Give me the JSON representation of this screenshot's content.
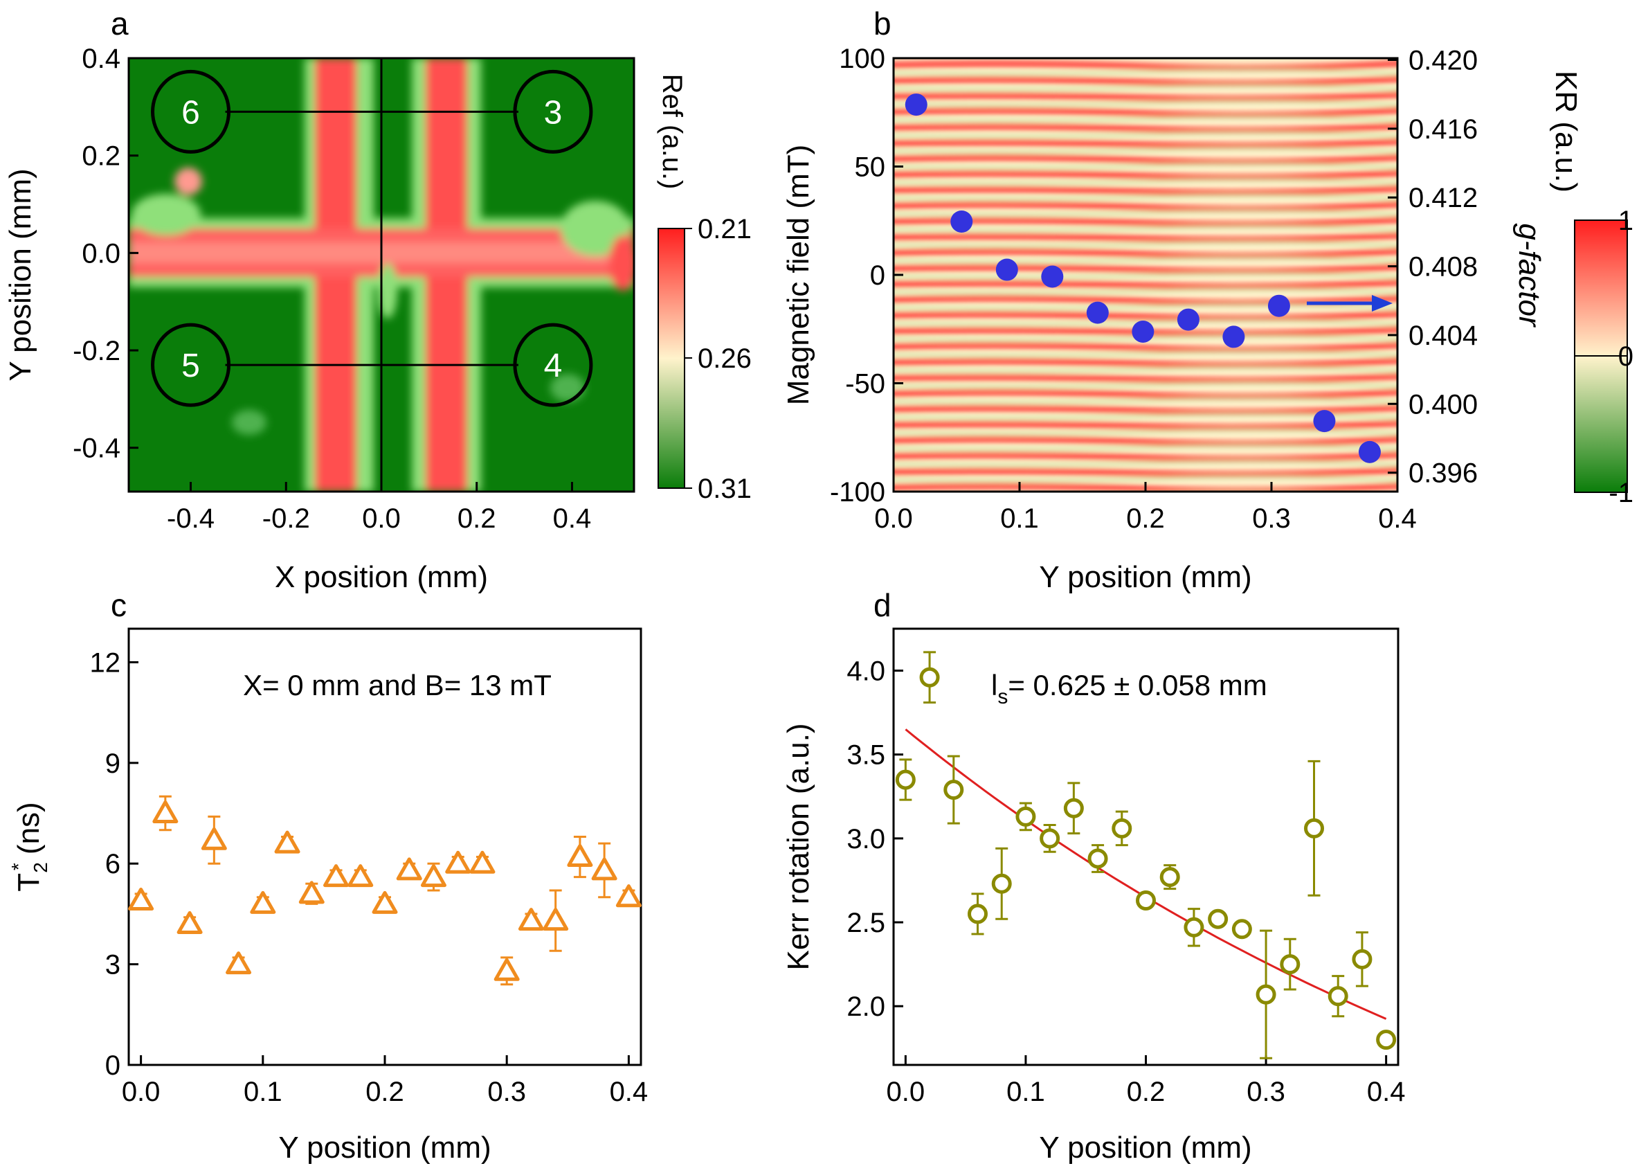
{
  "chart_data": [
    {
      "panel": "a",
      "type": "heatmap",
      "xlabel": "X position (mm)",
      "ylabel": "Y position (mm)",
      "xlim": [
        -0.53,
        0.53
      ],
      "ylim": [
        -0.49,
        0.4
      ],
      "xticks": [
        "-0.4",
        "-0.2",
        "0.0",
        "0.2",
        "0.4"
      ],
      "yticks": [
        "0.4",
        "0.2",
        "0.0",
        "-0.2",
        "-0.4"
      ],
      "colorbar": {
        "label": "Ref (a.u.)",
        "ticks": [
          "0.21",
          "0.26",
          "0.31"
        ],
        "colors": [
          "#ff1e1e",
          "#fff3cc",
          "#0a7d0a"
        ]
      },
      "contacts": [
        {
          "label": "6",
          "x": -0.4,
          "y": 0.29
        },
        {
          "label": "3",
          "x": 0.36,
          "y": 0.29
        },
        {
          "label": "5",
          "x": -0.4,
          "y": -0.23
        },
        {
          "label": "4",
          "x": 0.36,
          "y": -0.23
        }
      ],
      "cross_stripes": {
        "vertical_x": [
          -0.11,
          0.11
        ],
        "horizontal_y": 0.0
      }
    },
    {
      "panel": "b",
      "type": "heatmap",
      "xlabel": "Y position (mm)",
      "ylabel": "Magnetic field (mT)",
      "y2label": "g-factor",
      "xlim": [
        0.0,
        0.4
      ],
      "ylim": [
        -100,
        100
      ],
      "y2lim": [
        0.3949,
        0.4201
      ],
      "xticks": [
        "0.0",
        "0.1",
        "0.2",
        "0.3",
        "0.4"
      ],
      "yticks": [
        "100",
        "50",
        "0",
        "-50",
        "-100"
      ],
      "y2ticks": [
        "0.420",
        "0.416",
        "0.412",
        "0.408",
        "0.404",
        "0.400",
        "0.396"
      ],
      "colorbar": {
        "label": "KR (a.u.)",
        "ticks": [
          "1",
          "0",
          "-1"
        ],
        "colors": [
          "#ff1e1e",
          "#fff3cc",
          "#0a7d0a"
        ]
      },
      "series": [
        {
          "name": "g-factor",
          "color": "#3333dd",
          "x": [
            0.018,
            0.054,
            0.09,
            0.126,
            0.162,
            0.198,
            0.234,
            0.27,
            0.306,
            0.342,
            0.378
          ],
          "values": [
            0.4174,
            0.4106,
            0.4078,
            0.4074,
            0.4053,
            0.4042,
            0.4049,
            0.4039,
            0.4057,
            0.399,
            0.3972
          ]
        }
      ]
    },
    {
      "panel": "c",
      "type": "scatter",
      "title": "X= 0 mm and B= 13 mT",
      "xlabel": "Y position (mm)",
      "ylabel": "T",
      "ylabel_sub": "2",
      "ylabel_sup": "*",
      "ylabel_unit": " (ns)",
      "xlim": [
        -0.01,
        0.41
      ],
      "ylim": [
        0,
        13
      ],
      "xticks": [
        "0.0",
        "0.1",
        "0.2",
        "0.3",
        "0.4"
      ],
      "yticks": [
        "0",
        "3",
        "6",
        "9",
        "12"
      ],
      "series": [
        {
          "name": "T2*",
          "color": "#f08c1e",
          "x": [
            0.0,
            0.02,
            0.04,
            0.06,
            0.08,
            0.1,
            0.12,
            0.14,
            0.16,
            0.18,
            0.2,
            0.22,
            0.24,
            0.26,
            0.28,
            0.3,
            0.32,
            0.34,
            0.36,
            0.38,
            0.4
          ],
          "values": [
            4.9,
            7.5,
            4.2,
            6.7,
            3.0,
            4.8,
            6.6,
            5.1,
            5.6,
            5.6,
            4.8,
            5.8,
            5.6,
            6.0,
            6.0,
            2.8,
            4.3,
            4.3,
            6.2,
            5.8,
            5.0
          ],
          "errors": [
            0.2,
            0.5,
            0.2,
            0.7,
            0.2,
            0.2,
            0.2,
            0.3,
            0.2,
            0.2,
            0.2,
            0.2,
            0.4,
            0.2,
            0.2,
            0.4,
            0.2,
            0.9,
            0.6,
            0.8,
            0.2
          ]
        }
      ]
    },
    {
      "panel": "d",
      "type": "scatter",
      "title_prefix": "l",
      "title_sub": "s",
      "title": "= 0.625 ± 0.058 mm",
      "xlabel": "Y position (mm)",
      "ylabel": "Kerr rotation (a.u.)",
      "xlim": [
        -0.01,
        0.41
      ],
      "ylim": [
        1.65,
        4.25
      ],
      "xticks": [
        "0.0",
        "0.1",
        "0.2",
        "0.3",
        "0.4"
      ],
      "yticks": [
        "4.0",
        "3.5",
        "3.0",
        "2.5",
        "2.0"
      ],
      "series": [
        {
          "name": "Kerr rotation",
          "color": "#8a8a00",
          "x": [
            0.0,
            0.02,
            0.04,
            0.06,
            0.08,
            0.1,
            0.12,
            0.14,
            0.16,
            0.18,
            0.2,
            0.22,
            0.24,
            0.26,
            0.28,
            0.3,
            0.32,
            0.34,
            0.36,
            0.38,
            0.4
          ],
          "values": [
            3.35,
            3.96,
            3.29,
            2.55,
            2.73,
            3.13,
            3.0,
            3.18,
            2.88,
            3.06,
            2.63,
            2.77,
            2.47,
            2.52,
            2.46,
            2.07,
            2.25,
            3.06,
            2.06,
            2.28,
            1.8
          ],
          "errors": [
            0.12,
            0.15,
            0.2,
            0.12,
            0.21,
            0.08,
            0.08,
            0.15,
            0.08,
            0.1,
            0.03,
            0.07,
            0.11,
            0.04,
            0.04,
            0.38,
            0.15,
            0.4,
            0.12,
            0.16,
            0.03
          ]
        },
        {
          "name": "exponential fit",
          "type": "line",
          "color": "#e02020",
          "x0": 0.0,
          "x1": 0.4,
          "amplitude": 3.65,
          "decay_length": 0.625
        }
      ]
    }
  ]
}
